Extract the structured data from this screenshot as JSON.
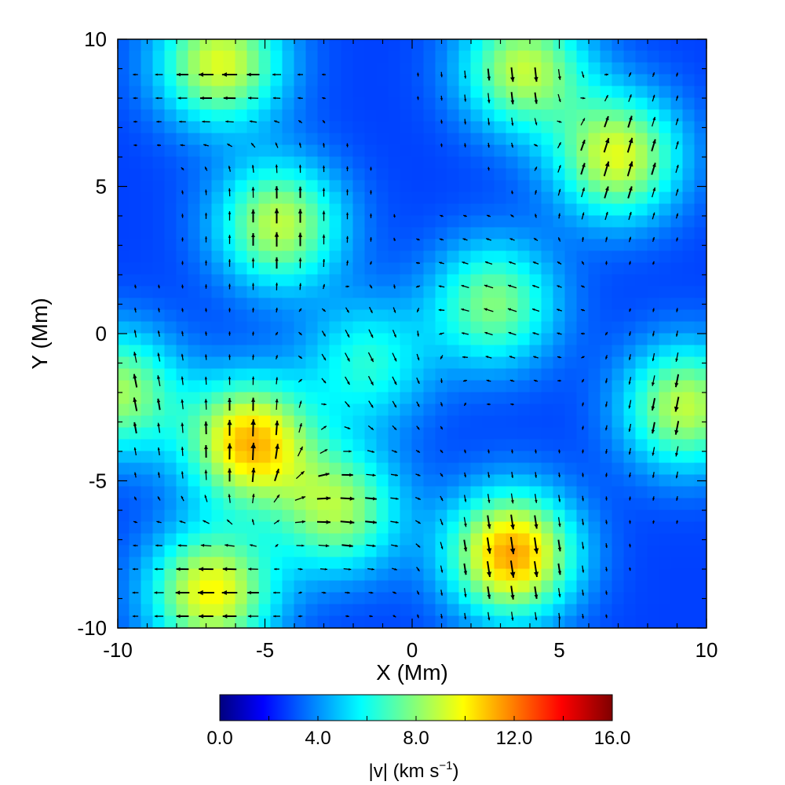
{
  "chart_data": {
    "type": "heatmap",
    "title": "",
    "xlabel": "X (Mm)",
    "ylabel": "Y (Mm)",
    "xlim": [
      -10,
      10
    ],
    "ylim": [
      -10,
      10
    ],
    "xticks": [
      "-10",
      "-5",
      "0",
      "5",
      "10"
    ],
    "yticks": [
      "-10",
      "-5",
      "0",
      "5",
      "10"
    ],
    "grid": false,
    "colorbar": {
      "label": "|v|  (km s",
      "label_superscript": "−1",
      "label_suffix": ")",
      "range": [
        0,
        16
      ],
      "ticks": [
        "0.0",
        "4.0",
        "8.0",
        "12.0",
        "16.0"
      ],
      "colormap": "jet"
    },
    "overlay": "velocity-vectors",
    "flow_cells": [
      {
        "x": -6.5,
        "y": 9.2,
        "speed": 9.5,
        "vx": -1.0,
        "vy": 0.0
      },
      {
        "x": 3.8,
        "y": 9.0,
        "speed": 9.0,
        "vx": 0.1,
        "vy": -1.0
      },
      {
        "x": 7.0,
        "y": 6.0,
        "speed": 9.5,
        "vx": 0.3,
        "vy": 1.0
      },
      {
        "x": -4.5,
        "y": 3.7,
        "speed": 9.0,
        "vx": 0.0,
        "vy": 1.0
      },
      {
        "x": 2.8,
        "y": 1.0,
        "speed": 8.0,
        "vx": -0.6,
        "vy": 0.2
      },
      {
        "x": -5.5,
        "y": -3.7,
        "speed": 11.0,
        "vx": 0.0,
        "vy": 1.0
      },
      {
        "x": 9.3,
        "y": -2.5,
        "speed": 9.0,
        "vx": -0.2,
        "vy": -1.0
      },
      {
        "x": -10.0,
        "y": -2.0,
        "speed": 8.5,
        "vx": -0.2,
        "vy": 1.0
      },
      {
        "x": -6.8,
        "y": -8.8,
        "speed": 10.0,
        "vx": -1.0,
        "vy": 0.0
      },
      {
        "x": -2.5,
        "y": -6.0,
        "speed": 8.5,
        "vx": 1.0,
        "vy": -0.1
      },
      {
        "x": 3.4,
        "y": -7.5,
        "speed": 11.5,
        "vx": 0.15,
        "vy": -1.0
      },
      {
        "x": -1.5,
        "y": -1.0,
        "speed": 6.5,
        "vx": 0.4,
        "vy": -0.8
      }
    ],
    "background_speed": 3.0
  }
}
